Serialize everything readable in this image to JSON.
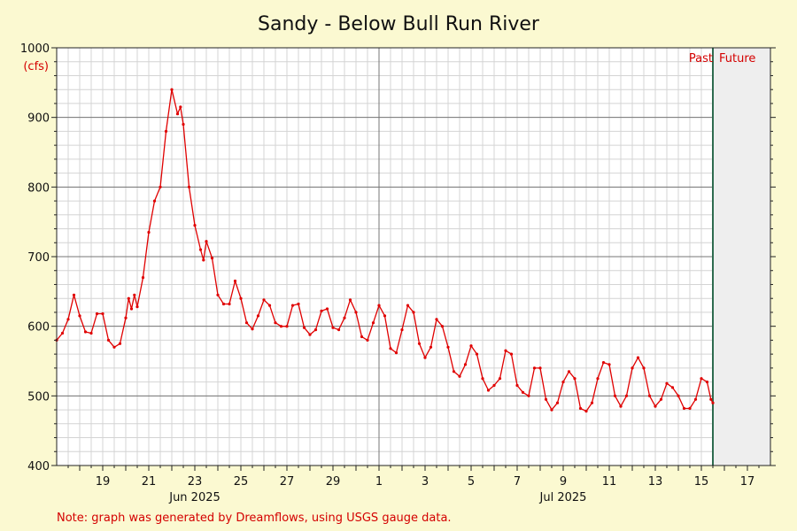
{
  "chart_data": {
    "type": "line",
    "title": "Sandy - Below Bull Run River",
    "ylabel": "(cfs)",
    "ylim": [
      400,
      1000
    ],
    "y_ticks": [
      400,
      500,
      600,
      700,
      800,
      900,
      1000
    ],
    "xlim": [
      "2025-06-17",
      "2025-07-18"
    ],
    "x_tick_labels": [
      {
        "date": "2025-06-19",
        "label": "19"
      },
      {
        "date": "2025-06-21",
        "label": "21"
      },
      {
        "date": "2025-06-23",
        "label": "23"
      },
      {
        "date": "2025-06-25",
        "label": "25"
      },
      {
        "date": "2025-06-27",
        "label": "27"
      },
      {
        "date": "2025-06-29",
        "label": "29"
      },
      {
        "date": "2025-07-01",
        "label": "1"
      },
      {
        "date": "2025-07-03",
        "label": "3"
      },
      {
        "date": "2025-07-05",
        "label": "5"
      },
      {
        "date": "2025-07-07",
        "label": "7"
      },
      {
        "date": "2025-07-09",
        "label": "9"
      },
      {
        "date": "2025-07-11",
        "label": "11"
      },
      {
        "date": "2025-07-13",
        "label": "13"
      },
      {
        "date": "2025-07-15",
        "label": "15"
      },
      {
        "date": "2025-07-17",
        "label": "17"
      }
    ],
    "month_labels": [
      {
        "date": "2025-06-23",
        "label": "Jun 2025"
      },
      {
        "date": "2025-07-09",
        "label": "Jul 2025"
      }
    ],
    "now_marker": "2025-07-15 12:00",
    "past_label": "Past",
    "future_label": "Future",
    "grid": true,
    "series": [
      {
        "color": "#e00000",
        "points": [
          [
            "2025-06-17 00:00",
            580
          ],
          [
            "2025-06-17 06:00",
            590
          ],
          [
            "2025-06-17 12:00",
            610
          ],
          [
            "2025-06-17 18:00",
            645
          ],
          [
            "2025-06-18 00:00",
            615
          ],
          [
            "2025-06-18 06:00",
            592
          ],
          [
            "2025-06-18 12:00",
            590
          ],
          [
            "2025-06-18 18:00",
            618
          ],
          [
            "2025-06-19 00:00",
            618
          ],
          [
            "2025-06-19 06:00",
            580
          ],
          [
            "2025-06-19 12:00",
            570
          ],
          [
            "2025-06-19 18:00",
            575
          ],
          [
            "2025-06-20 00:00",
            612
          ],
          [
            "2025-06-20 03:00",
            640
          ],
          [
            "2025-06-20 06:00",
            625
          ],
          [
            "2025-06-20 09:00",
            645
          ],
          [
            "2025-06-20 12:00",
            628
          ],
          [
            "2025-06-20 18:00",
            670
          ],
          [
            "2025-06-21 00:00",
            735
          ],
          [
            "2025-06-21 06:00",
            780
          ],
          [
            "2025-06-21 12:00",
            800
          ],
          [
            "2025-06-21 18:00",
            880
          ],
          [
            "2025-06-22 00:00",
            940
          ],
          [
            "2025-06-22 06:00",
            905
          ],
          [
            "2025-06-22 09:00",
            915
          ],
          [
            "2025-06-22 12:00",
            890
          ],
          [
            "2025-06-22 18:00",
            800
          ],
          [
            "2025-06-23 00:00",
            745
          ],
          [
            "2025-06-23 06:00",
            710
          ],
          [
            "2025-06-23 09:00",
            695
          ],
          [
            "2025-06-23 12:00",
            722
          ],
          [
            "2025-06-23 18:00",
            698
          ],
          [
            "2025-06-24 00:00",
            645
          ],
          [
            "2025-06-24 06:00",
            632
          ],
          [
            "2025-06-24 12:00",
            632
          ],
          [
            "2025-06-24 18:00",
            665
          ],
          [
            "2025-06-25 00:00",
            640
          ],
          [
            "2025-06-25 06:00",
            605
          ],
          [
            "2025-06-25 12:00",
            596
          ],
          [
            "2025-06-25 18:00",
            615
          ],
          [
            "2025-06-26 00:00",
            638
          ],
          [
            "2025-06-26 06:00",
            630
          ],
          [
            "2025-06-26 12:00",
            605
          ],
          [
            "2025-06-26 18:00",
            600
          ],
          [
            "2025-06-27 00:00",
            600
          ],
          [
            "2025-06-27 06:00",
            630
          ],
          [
            "2025-06-27 12:00",
            632
          ],
          [
            "2025-06-27 18:00",
            598
          ],
          [
            "2025-06-28 00:00",
            588
          ],
          [
            "2025-06-28 06:00",
            595
          ],
          [
            "2025-06-28 12:00",
            622
          ],
          [
            "2025-06-28 18:00",
            625
          ],
          [
            "2025-06-29 00:00",
            598
          ],
          [
            "2025-06-29 06:00",
            595
          ],
          [
            "2025-06-29 12:00",
            612
          ],
          [
            "2025-06-29 18:00",
            638
          ],
          [
            "2025-06-30 00:00",
            620
          ],
          [
            "2025-06-30 06:00",
            585
          ],
          [
            "2025-06-30 12:00",
            580
          ],
          [
            "2025-06-30 18:00",
            605
          ],
          [
            "2025-07-01 00:00",
            630
          ],
          [
            "2025-07-01 06:00",
            615
          ],
          [
            "2025-07-01 12:00",
            568
          ],
          [
            "2025-07-01 18:00",
            562
          ],
          [
            "2025-07-02 00:00",
            595
          ],
          [
            "2025-07-02 06:00",
            630
          ],
          [
            "2025-07-02 12:00",
            620
          ],
          [
            "2025-07-02 18:00",
            575
          ],
          [
            "2025-07-03 00:00",
            555
          ],
          [
            "2025-07-03 06:00",
            570
          ],
          [
            "2025-07-03 12:00",
            610
          ],
          [
            "2025-07-03 18:00",
            600
          ],
          [
            "2025-07-04 00:00",
            570
          ],
          [
            "2025-07-04 06:00",
            535
          ],
          [
            "2025-07-04 12:00",
            528
          ],
          [
            "2025-07-04 18:00",
            545
          ],
          [
            "2025-07-05 00:00",
            572
          ],
          [
            "2025-07-05 06:00",
            560
          ],
          [
            "2025-07-05 12:00",
            525
          ],
          [
            "2025-07-05 18:00",
            508
          ],
          [
            "2025-07-06 00:00",
            515
          ],
          [
            "2025-07-06 06:00",
            525
          ],
          [
            "2025-07-06 12:00",
            565
          ],
          [
            "2025-07-06 18:00",
            560
          ],
          [
            "2025-07-07 00:00",
            515
          ],
          [
            "2025-07-07 06:00",
            505
          ],
          [
            "2025-07-07 12:00",
            500
          ],
          [
            "2025-07-07 18:00",
            540
          ],
          [
            "2025-07-08 00:00",
            540
          ],
          [
            "2025-07-08 06:00",
            495
          ],
          [
            "2025-07-08 12:00",
            480
          ],
          [
            "2025-07-08 18:00",
            490
          ],
          [
            "2025-07-09 00:00",
            520
          ],
          [
            "2025-07-09 06:00",
            535
          ],
          [
            "2025-07-09 12:00",
            525
          ],
          [
            "2025-07-09 18:00",
            482
          ],
          [
            "2025-07-10 00:00",
            478
          ],
          [
            "2025-07-10 06:00",
            490
          ],
          [
            "2025-07-10 12:00",
            525
          ],
          [
            "2025-07-10 18:00",
            548
          ],
          [
            "2025-07-11 00:00",
            545
          ],
          [
            "2025-07-11 06:00",
            500
          ],
          [
            "2025-07-11 12:00",
            485
          ],
          [
            "2025-07-11 18:00",
            500
          ],
          [
            "2025-07-12 00:00",
            540
          ],
          [
            "2025-07-12 06:00",
            555
          ],
          [
            "2025-07-12 12:00",
            540
          ],
          [
            "2025-07-12 18:00",
            500
          ],
          [
            "2025-07-13 00:00",
            485
          ],
          [
            "2025-07-13 06:00",
            495
          ],
          [
            "2025-07-13 12:00",
            518
          ],
          [
            "2025-07-13 18:00",
            512
          ],
          [
            "2025-07-14 00:00",
            500
          ],
          [
            "2025-07-14 06:00",
            482
          ],
          [
            "2025-07-14 12:00",
            482
          ],
          [
            "2025-07-14 18:00",
            495
          ],
          [
            "2025-07-15 00:00",
            525
          ],
          [
            "2025-07-15 06:00",
            520
          ],
          [
            "2025-07-15 10:00",
            495
          ],
          [
            "2025-07-15 12:00",
            490
          ]
        ]
      }
    ]
  },
  "note": "Note: graph was generated by Dreamflows, using USGS gauge data."
}
